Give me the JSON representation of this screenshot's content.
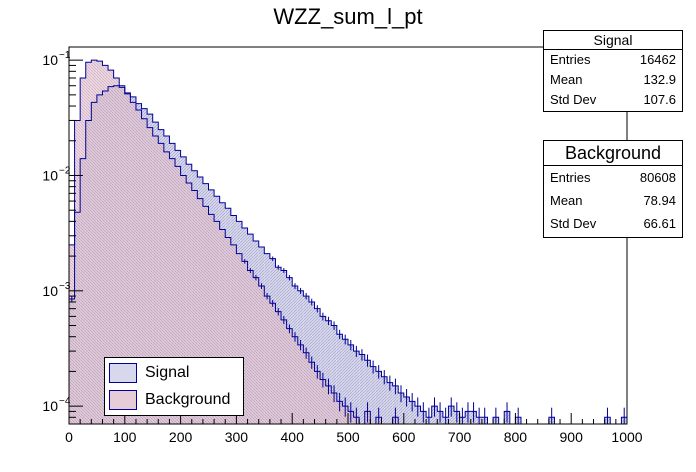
{
  "chart_data": {
    "type": "histogram",
    "title": "WZZ_sum_l_pt",
    "xlabel": "",
    "ylabel": "",
    "xlim": [
      0,
      1000
    ],
    "ylim": [
      7e-05,
      0.13
    ],
    "yscale": "log",
    "grid": false,
    "x_ticks": [
      "0",
      "100",
      "200",
      "300",
      "400",
      "500",
      "600",
      "700",
      "800",
      "900",
      "1000"
    ],
    "y_ticks": [
      {
        "value": 0.1,
        "base": "10",
        "exp": "−1"
      },
      {
        "value": 0.01,
        "base": "10",
        "exp": "−2"
      },
      {
        "value": 0.001,
        "base": "10",
        "exp": "−3"
      },
      {
        "value": 0.0001,
        "base": "10",
        "exp": "−4"
      }
    ],
    "legend_position": "bottom-left",
    "series": [
      {
        "name": "Signal",
        "line_color": "#000099",
        "fill_color": "#cfcfe6",
        "bin_width": 10,
        "bins": [
          [
            0,
            0.00085
          ],
          [
            10,
            0.0048
          ],
          [
            20,
            0.014
          ],
          [
            30,
            0.03
          ],
          [
            40,
            0.043
          ],
          [
            50,
            0.05
          ],
          [
            60,
            0.054
          ],
          [
            70,
            0.059
          ],
          [
            80,
            0.06
          ],
          [
            90,
            0.058
          ],
          [
            100,
            0.052
          ],
          [
            110,
            0.048
          ],
          [
            120,
            0.042
          ],
          [
            130,
            0.038
          ],
          [
            140,
            0.034
          ],
          [
            150,
            0.029
          ],
          [
            160,
            0.025
          ],
          [
            170,
            0.022
          ],
          [
            180,
            0.019
          ],
          [
            190,
            0.0165
          ],
          [
            200,
            0.0145
          ],
          [
            210,
            0.0125
          ],
          [
            220,
            0.011
          ],
          [
            230,
            0.0097
          ],
          [
            240,
            0.0085
          ],
          [
            250,
            0.0075
          ],
          [
            260,
            0.0066
          ],
          [
            270,
            0.0058
          ],
          [
            280,
            0.0052
          ],
          [
            290,
            0.0045
          ],
          [
            300,
            0.004
          ],
          [
            310,
            0.0035
          ],
          [
            320,
            0.0031
          ],
          [
            330,
            0.0027
          ],
          [
            340,
            0.0024
          ],
          [
            350,
            0.0021
          ],
          [
            360,
            0.0019
          ],
          [
            370,
            0.0016
          ],
          [
            380,
            0.0015
          ],
          [
            390,
            0.0013
          ],
          [
            400,
            0.0011
          ],
          [
            410,
            0.001
          ],
          [
            420,
            0.0009
          ],
          [
            430,
            0.0008
          ],
          [
            440,
            0.0007
          ],
          [
            450,
            0.0006
          ],
          [
            460,
            0.00055
          ],
          [
            470,
            0.0005
          ],
          [
            480,
            0.00042
          ],
          [
            490,
            0.00038
          ],
          [
            500,
            0.00034
          ],
          [
            510,
            0.0003
          ],
          [
            520,
            0.00028
          ],
          [
            530,
            0.00025
          ],
          [
            540,
            0.00022
          ],
          [
            550,
            0.0002
          ],
          [
            560,
            0.00018
          ],
          [
            570,
            0.00016
          ],
          [
            580,
            0.00015
          ],
          [
            590,
            0.00013
          ],
          [
            600,
            0.00012
          ],
          [
            610,
            0.00011
          ],
          [
            620,
            0.0001
          ],
          [
            630,
            9e-05
          ],
          [
            640,
            8e-05
          ],
          [
            650,
            0.0001
          ],
          [
            660,
            9e-05
          ],
          [
            670,
            8e-05
          ],
          [
            680,
            0.0001
          ],
          [
            690,
            9e-05
          ],
          [
            700,
            8e-05
          ],
          [
            710,
            9e-05
          ],
          [
            720,
            9e-05
          ],
          [
            730,
            8e-05
          ],
          [
            740,
            8e-05
          ],
          [
            750,
            0.0
          ],
          [
            760,
            8e-05
          ],
          [
            770,
            0.0
          ],
          [
            780,
            9e-05
          ],
          [
            790,
            0.0
          ],
          [
            800,
            8e-05
          ],
          [
            810,
            0.0
          ],
          [
            820,
            0.0
          ],
          [
            830,
            0.0
          ],
          [
            840,
            0.0
          ],
          [
            850,
            0.0
          ],
          [
            860,
            8e-05
          ],
          [
            870,
            0.0
          ],
          [
            880,
            0.0
          ],
          [
            890,
            0.0
          ],
          [
            900,
            0.0
          ],
          [
            910,
            0.0
          ],
          [
            920,
            0.0
          ],
          [
            930,
            0.0
          ],
          [
            940,
            0.0
          ],
          [
            950,
            0.0
          ],
          [
            960,
            8e-05
          ],
          [
            970,
            0.0
          ],
          [
            980,
            0.0
          ],
          [
            990,
            8e-05
          ]
        ]
      },
      {
        "name": "Background",
        "line_color": "#000099",
        "fill_color": "#e2c6d4",
        "bin_width": 10,
        "bins": [
          [
            0,
            0.0025
          ],
          [
            10,
            0.03
          ],
          [
            20,
            0.07
          ],
          [
            30,
            0.096
          ],
          [
            40,
            0.1
          ],
          [
            50,
            0.098
          ],
          [
            60,
            0.09
          ],
          [
            70,
            0.082
          ],
          [
            80,
            0.07
          ],
          [
            90,
            0.06
          ],
          [
            100,
            0.051
          ],
          [
            110,
            0.043
          ],
          [
            120,
            0.037
          ],
          [
            130,
            0.031
          ],
          [
            140,
            0.026
          ],
          [
            150,
            0.022
          ],
          [
            160,
            0.019
          ],
          [
            170,
            0.016
          ],
          [
            180,
            0.014
          ],
          [
            190,
            0.012
          ],
          [
            200,
            0.01
          ],
          [
            210,
            0.0086
          ],
          [
            220,
            0.0074
          ],
          [
            230,
            0.0063
          ],
          [
            240,
            0.0054
          ],
          [
            250,
            0.0046
          ],
          [
            260,
            0.004
          ],
          [
            270,
            0.0034
          ],
          [
            280,
            0.0029
          ],
          [
            290,
            0.0025
          ],
          [
            300,
            0.0021
          ],
          [
            310,
            0.0018
          ],
          [
            320,
            0.0015
          ],
          [
            330,
            0.0013
          ],
          [
            340,
            0.0011
          ],
          [
            350,
            0.0009
          ],
          [
            360,
            0.00078
          ],
          [
            370,
            0.00066
          ],
          [
            380,
            0.00056
          ],
          [
            390,
            0.00047
          ],
          [
            400,
            0.0004
          ],
          [
            410,
            0.00034
          ],
          [
            420,
            0.00029
          ],
          [
            430,
            0.00024
          ],
          [
            440,
            0.0002
          ],
          [
            450,
            0.00017
          ],
          [
            460,
            0.00015
          ],
          [
            470,
            0.00013
          ],
          [
            480,
            0.00011
          ],
          [
            490,
            0.0001
          ],
          [
            500,
            9e-05
          ],
          [
            510,
            8e-05
          ],
          [
            520,
            0.0
          ],
          [
            530,
            9e-05
          ],
          [
            540,
            0.0
          ],
          [
            550,
            8e-05
          ],
          [
            560,
            0.0
          ],
          [
            570,
            0.0
          ],
          [
            580,
            8e-05
          ],
          [
            590,
            0.0
          ],
          [
            600,
            0.0
          ],
          [
            610,
            0.0
          ],
          [
            620,
            0.0
          ],
          [
            630,
            0.0
          ],
          [
            640,
            0.0
          ],
          [
            650,
            0.0
          ],
          [
            660,
            0.0
          ],
          [
            670,
            0.0
          ],
          [
            680,
            0.0
          ],
          [
            690,
            0.0
          ],
          [
            700,
            0.0
          ],
          [
            710,
            0.0
          ],
          [
            720,
            0.0
          ],
          [
            730,
            0.0
          ],
          [
            740,
            0.0
          ],
          [
            750,
            0.0
          ],
          [
            760,
            0.0
          ],
          [
            770,
            0.0
          ],
          [
            780,
            0.0
          ],
          [
            790,
            0.0
          ],
          [
            800,
            0.0
          ],
          [
            810,
            0.0
          ],
          [
            820,
            0.0
          ],
          [
            830,
            0.0
          ],
          [
            840,
            0.0
          ],
          [
            850,
            0.0
          ],
          [
            860,
            0.0
          ],
          [
            870,
            0.0
          ],
          [
            880,
            0.0
          ],
          [
            890,
            0.0
          ],
          [
            900,
            0.0
          ],
          [
            910,
            0.0
          ],
          [
            920,
            0.0
          ],
          [
            930,
            0.0
          ],
          [
            940,
            0.0
          ],
          [
            950,
            0.0
          ],
          [
            960,
            0.0
          ],
          [
            970,
            0.0
          ],
          [
            980,
            0.0
          ],
          [
            990,
            0.0
          ]
        ]
      }
    ],
    "stats_boxes": [
      {
        "title": "Signal",
        "entries_label": "Entries",
        "entries": "16462",
        "mean_label": "Mean",
        "mean": "132.9",
        "std_label": "Std Dev",
        "std": "107.6"
      },
      {
        "title": "Background",
        "entries_label": "Entries",
        "entries": "80608",
        "mean_label": "Mean",
        "mean": "78.94",
        "std_label": "Std Dev",
        "std": "66.61"
      }
    ]
  }
}
